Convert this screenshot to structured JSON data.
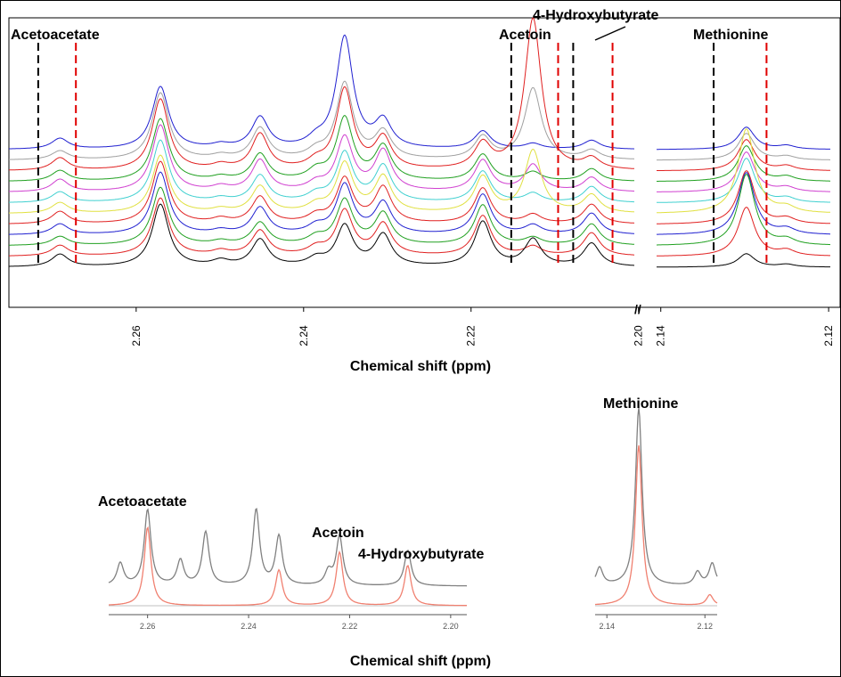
{
  "chart_data": [
    {
      "type": "line",
      "x_label": "Chemical shift (ppm)",
      "peak_width": 0.0012,
      "marker_colors": [
        "#000000",
        "#e00000"
      ],
      "markers": [
        {
          "label": "Acetoacetate",
          "ppm": [
            2.2717,
            2.2672
          ]
        },
        {
          "label": "Acetoin",
          "ppm": [
            2.2152,
            2.2096
          ]
        },
        {
          "label": "4-Hydroxybutyrate",
          "ppm": [
            2.2078,
            2.2031
          ]
        },
        {
          "label": "Methionine",
          "ppm": [
            2.1337,
            2.1274
          ]
        }
      ],
      "segments": [
        {
          "xlim": [
            2.2752,
            2.2005
          ],
          "xticks": [
            2.26,
            2.24,
            2.22,
            {
              "value": 2.2,
              "label": "2.20"
            }
          ],
          "peaks": [
            2.2691,
            2.2571,
            2.2499,
            2.2452,
            2.2385,
            2.2351,
            2.2305,
            2.2186,
            2.2126,
            2.2056
          ],
          "series": [
            {
              "color": "#2020d0",
              "values": [
                12,
                70,
                4,
                35,
                8,
                125,
                30,
                20,
                6,
                10
              ]
            },
            {
              "color": "#a0a0a0",
              "values": [
                10,
                75,
                4,
                35,
                8,
                85,
                30,
                25,
                80,
                10
              ]
            },
            {
              "color": "#e02020",
              "values": [
                14,
                80,
                5,
                40,
                8,
                90,
                35,
                28,
                170,
                12
              ]
            },
            {
              "color": "#20a020",
              "values": [
                12,
                70,
                4,
                30,
                10,
                70,
                38,
                30,
                10,
                14
              ]
            },
            {
              "color": "#d040d0",
              "values": [
                14,
                75,
                5,
                35,
                8,
                60,
                45,
                35,
                30,
                16
              ]
            },
            {
              "color": "#40d0d0",
              "values": [
                12,
                70,
                4,
                30,
                8,
                55,
                40,
                35,
                10,
                18
              ]
            },
            {
              "color": "#e0e040",
              "values": [
                12,
                65,
                4,
                30,
                8,
                55,
                40,
                40,
                70,
                20
              ]
            },
            {
              "color": "#e02020",
              "values": [
                14,
                70,
                5,
                30,
                8,
                50,
                40,
                40,
                10,
                22
              ]
            },
            {
              "color": "#2020d0",
              "values": [
                12,
                70,
                4,
                30,
                8,
                55,
                35,
                45,
                10,
                24
              ]
            },
            {
              "color": "#20a020",
              "values": [
                10,
                65,
                4,
                25,
                8,
                50,
                35,
                45,
                8,
                24
              ]
            },
            {
              "color": "#e02020",
              "values": [
                12,
                65,
                5,
                28,
                8,
                50,
                35,
                45,
                10,
                26
              ]
            },
            {
              "color": "#000000",
              "values": [
                14,
                70,
                6,
                30,
                8,
                45,
                35,
                50,
                30,
                26
              ]
            }
          ]
        },
        {
          "xlim": [
            2.1405,
            2.1198
          ],
          "xticks": [
            2.14,
            2.12
          ],
          "peaks": [
            2.1298,
            2.125
          ],
          "series": [
            {
              "color": "#2020d0",
              "values": [
                25,
                4
              ]
            },
            {
              "color": "#a0a0a0",
              "values": [
                30,
                4
              ]
            },
            {
              "color": "#e02020",
              "values": [
                35,
                5
              ]
            },
            {
              "color": "#20a020",
              "values": [
                40,
                5
              ]
            },
            {
              "color": "#d040d0",
              "values": [
                45,
                5
              ]
            },
            {
              "color": "#40d0d0",
              "values": [
                50,
                5
              ]
            },
            {
              "color": "#e0e040",
              "values": [
                95,
                6
              ]
            },
            {
              "color": "#e02020",
              "values": [
                60,
                6
              ]
            },
            {
              "color": "#2020d0",
              "values": [
                70,
                6
              ]
            },
            {
              "color": "#20a020",
              "values": [
                80,
                6
              ]
            },
            {
              "color": "#e02020",
              "values": [
                55,
                6
              ]
            },
            {
              "color": "#000000",
              "values": [
                15,
                3
              ]
            }
          ]
        }
      ]
    },
    {
      "type": "line",
      "x_label": "Chemical shift (ppm)",
      "peak_width": 0.0008,
      "annotations": [
        "Acetoacetate",
        "Acetoin",
        "4-Hydroxybutyrate",
        "Methionine"
      ],
      "segments": [
        {
          "xlim": [
            2.2677,
            2.1968
          ],
          "xticks": [
            2.26,
            2.24,
            2.22,
            {
              "value": 2.2,
              "label": "2.20"
            }
          ],
          "series": [
            {
              "color": "#808080",
              "peaks": [
                2.2654,
                2.26,
                2.2535,
                2.2485,
                2.2385,
                2.234,
                2.2242,
                2.222,
                2.2085
              ],
              "values": [
                25,
                85,
                28,
                60,
                85,
                55,
                15,
                55,
                40
              ]
            },
            {
              "color": "#f08070",
              "peaks": [
                2.26,
                2.234,
                2.222,
                2.2085
              ],
              "values": [
                88,
                40,
                60,
                45
              ]
            }
          ]
        },
        {
          "xlim": [
            2.1424,
            2.1175
          ],
          "xticks": [
            2.14,
            2.12
          ],
          "series": [
            {
              "color": "#808080",
              "peaks": [
                2.1415,
                2.1335,
                2.1215,
                2.1185
              ],
              "values": [
                20,
                200,
                15,
                25
              ]
            },
            {
              "color": "#f08070",
              "peaks": [
                2.1335,
                2.119
              ],
              "values": [
                180,
                12
              ]
            }
          ]
        }
      ]
    }
  ]
}
